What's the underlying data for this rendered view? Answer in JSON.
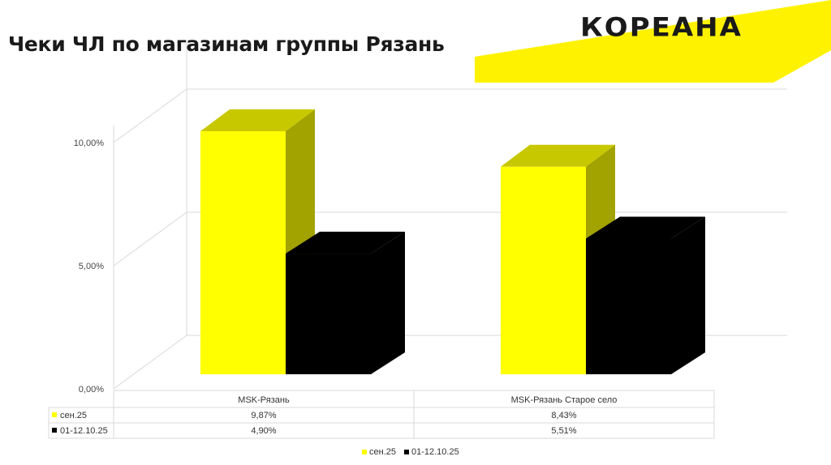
{
  "header": {
    "title": "Чеки ЧЛ по магазинам группы Рязань",
    "brand": "КОРЕАНА"
  },
  "colors": {
    "accent_yellow": "#ffff00",
    "accent_yellow_top": "#c8c800",
    "accent_yellow_side": "#a2a200",
    "series_black": "#000000",
    "brand_band": "#fff200"
  },
  "chart_data": {
    "type": "bar",
    "categories": [
      "MSK-Рязань",
      "MSK-Рязань Старое село"
    ],
    "series": [
      {
        "name": "сен.25",
        "values": [
          9.87,
          8.43
        ],
        "labels": [
          "9,87%",
          "8,43%"
        ]
      },
      {
        "name": "01-12.10.25",
        "values": [
          4.9,
          5.51
        ],
        "labels": [
          "4,90%",
          "5,51%"
        ]
      }
    ],
    "yticks": [
      "0,00%",
      "5,00%",
      "10,00%"
    ],
    "ylim": [
      0,
      10
    ],
    "grid": true,
    "legend_position": "bottom",
    "data_table": true
  }
}
